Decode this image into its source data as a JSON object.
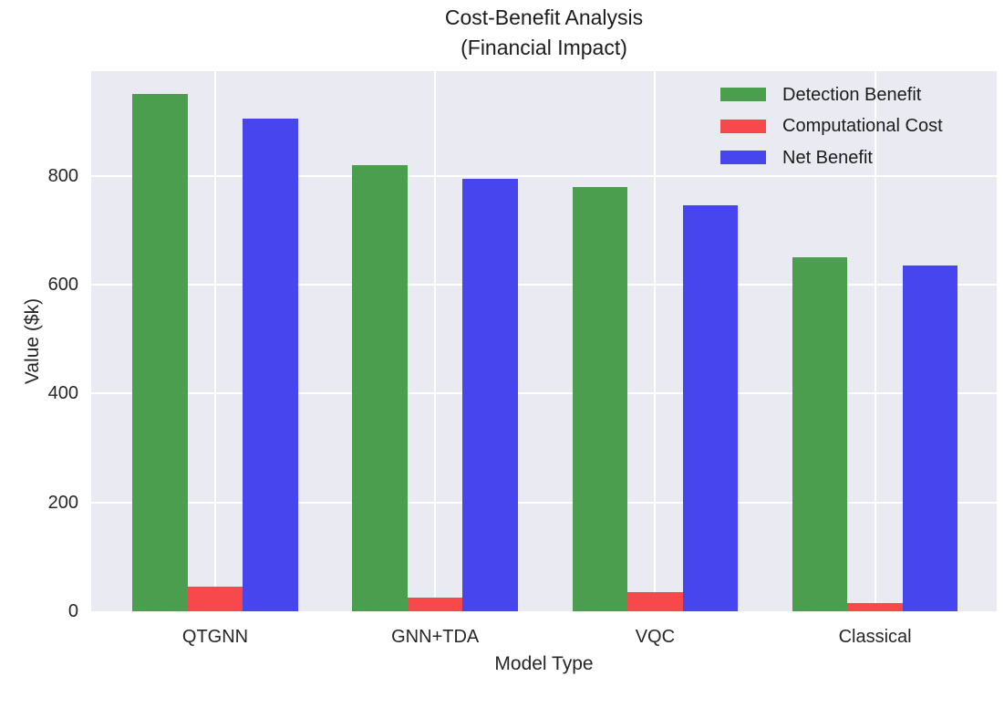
{
  "chart_data": {
    "type": "bar",
    "title": "Cost-Benefit Analysis",
    "subtitle": "(Financial Impact)",
    "xlabel": "Model Type",
    "ylabel": "Value ($k)",
    "categories": [
      "QTGNN",
      "GNN+TDA",
      "VQC",
      "Classical"
    ],
    "series": [
      {
        "name": "Detection Benefit",
        "color": "#4A9E4E",
        "values": [
          950,
          820,
          780,
          650
        ]
      },
      {
        "name": "Computational Cost",
        "color": "#F7494B",
        "values": [
          45,
          25,
          35,
          15
        ]
      },
      {
        "name": "Net Benefit",
        "color": "#4645EE",
        "values": [
          905,
          795,
          745,
          635
        ]
      }
    ],
    "yticks": [
      0,
      200,
      400,
      600,
      800
    ],
    "ylim": [
      0,
      992
    ],
    "grid": true,
    "legend_position": "upper right",
    "plot_background": "#EAEAF2",
    "grid_color": "#FFFFFF",
    "text_color": "#262626"
  }
}
